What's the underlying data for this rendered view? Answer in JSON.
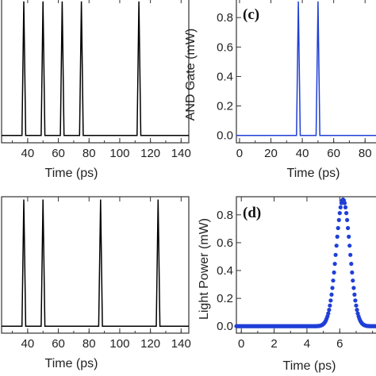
{
  "chart_data": [
    {
      "panel": "top-left",
      "type": "line",
      "xlabel": "Time (ps)",
      "ylabel": "",
      "xlim": [
        23,
        145
      ],
      "ylim": [
        -0.05,
        0.93
      ],
      "xticks": [
        "40",
        "60",
        "80",
        "100",
        "120",
        "140"
      ],
      "yticks": [],
      "color": "#000000",
      "pulse_centers": [
        37.5,
        50,
        62.5,
        75,
        112.5
      ],
      "pulse_height": 0.91,
      "pulse_halfwidth": 1.2,
      "pulse_shape": "triangle",
      "tag": ""
    },
    {
      "panel": "top-right",
      "type": "line",
      "tag": "(c)",
      "xlabel": "Time (ps)",
      "ylabel": "AND Gate (mW)",
      "xlim": [
        -2,
        90
      ],
      "ylim": [
        -0.05,
        0.93
      ],
      "xticks": [
        "0",
        "20",
        "40",
        "60",
        "80"
      ],
      "yticks": [
        "0.0",
        "0.2",
        "0.4",
        "0.6",
        "0.8"
      ],
      "color": "#1f3fd6",
      "pulse_centers": [
        37.5,
        50
      ],
      "pulse_height": 0.91,
      "pulse_halfwidth": 1.2,
      "pulse_shape": "triangle"
    },
    {
      "panel": "bottom-left",
      "type": "line",
      "xlabel": "Time (ps)",
      "ylabel": "",
      "xlim": [
        23,
        145
      ],
      "ylim": [
        -0.05,
        0.93
      ],
      "xticks": [
        "40",
        "60",
        "80",
        "100",
        "120",
        "140"
      ],
      "yticks": [],
      "color": "#000000",
      "pulse_centers": [
        37.5,
        50,
        87.5,
        125
      ],
      "pulse_height": 0.91,
      "pulse_halfwidth": 1.2,
      "pulse_shape": "triangle",
      "tag": ""
    },
    {
      "panel": "bottom-right",
      "type": "scatter",
      "tag": "(d)",
      "xlabel": "Time (ps)",
      "ylabel": "Light Power (mW)",
      "xlim": [
        -0.3,
        8.5
      ],
      "ylim": [
        -0.05,
        0.93
      ],
      "xticks": [
        "0",
        "2",
        "4",
        "6"
      ],
      "yticks": [
        "0.0",
        "0.2",
        "0.4",
        "0.6",
        "0.8"
      ],
      "color": "#1f3fd6",
      "pulse_center": 6.2,
      "pulse_height": 0.91,
      "pulse_sigma": 0.42,
      "pulse_shape": "gaussian-dots"
    }
  ]
}
